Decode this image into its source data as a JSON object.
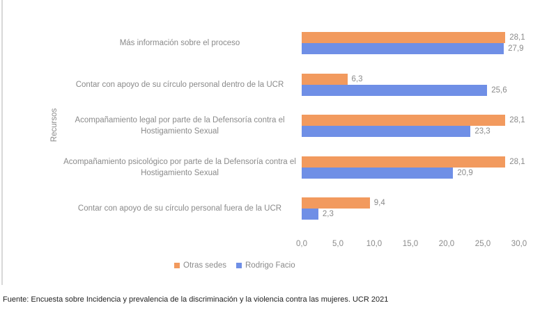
{
  "chart_data": {
    "type": "hbar",
    "categories": [
      "Más información sobre el proceso",
      "Contar con apoyo de su círculo personal dentro de la UCR",
      "Acompañamiento legal por parte de la Defensoría contra el Hostigamiento Sexual",
      "Acompañamiento psicológico por parte de la Defensoría contra el Hostigamiento Sexual",
      "Contar con apoyo de su círculo personal fuera de la UCR"
    ],
    "series": [
      {
        "name": "Otras sedes",
        "color": "#f29a5e",
        "values": [
          28.1,
          6.3,
          28.1,
          28.1,
          9.4
        ],
        "value_labels": [
          "28,1",
          "6,3",
          "28,1",
          "28,1",
          "9,4"
        ]
      },
      {
        "name": "Rodrigo Facio",
        "color": "#6f8fe6",
        "values": [
          27.9,
          25.6,
          23.3,
          20.9,
          2.3
        ],
        "value_labels": [
          "27,9",
          "25,6",
          "23,3",
          "20,9",
          "2,3"
        ]
      }
    ],
    "ylabel": "Recursos",
    "xlim": [
      0,
      30
    ],
    "xticks": [
      {
        "value": 0,
        "label": "0,0"
      },
      {
        "value": 5,
        "label": "5,0"
      },
      {
        "value": 10,
        "label": "10,0"
      },
      {
        "value": 15,
        "label": "15,0"
      },
      {
        "value": 20,
        "label": "20,0"
      },
      {
        "value": 25,
        "label": "25,0"
      },
      {
        "value": 30,
        "label": "30,0"
      }
    ],
    "legend": "bottom",
    "source": "Fuente: Encuesta sobre Incidencia y prevalencia de la discriminación y la violencia contra las mujeres. UCR 2021"
  }
}
